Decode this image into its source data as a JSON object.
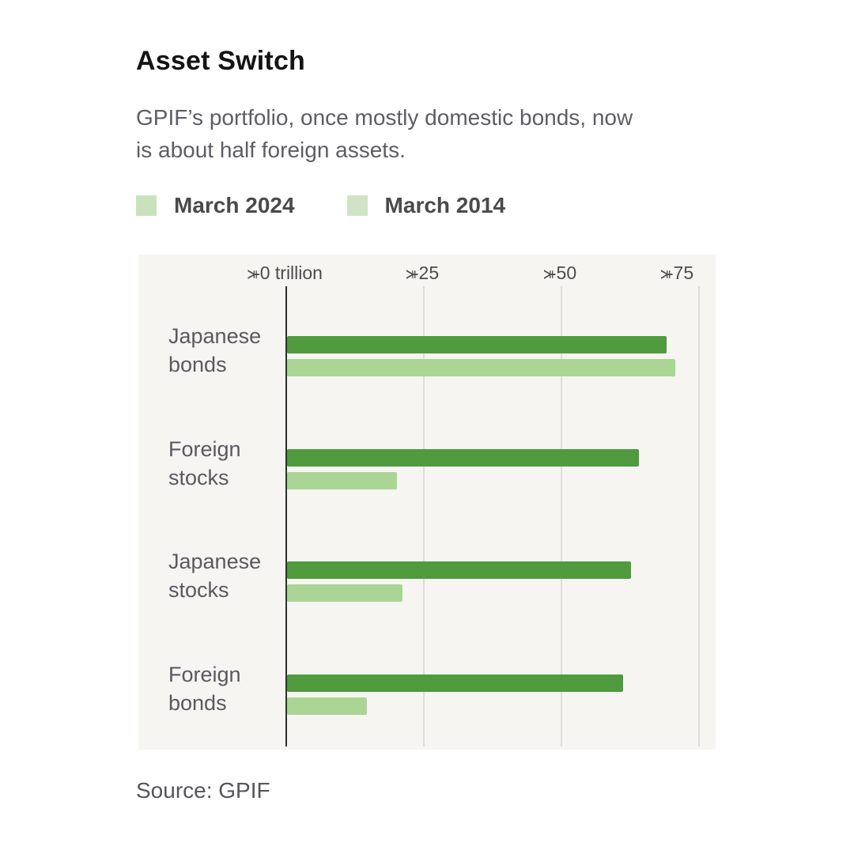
{
  "header": {
    "title": "Asset Switch",
    "subtitle_line1": "GPIF’s portfolio, once mostly domestic bonds, now",
    "subtitle_line2": "is about half foreign assets."
  },
  "legend": [
    {
      "label": "March 2024",
      "color": "#c9e2bc"
    },
    {
      "label": "March 2014",
      "color": "#cfe4c6"
    }
  ],
  "source": "Source: GPIF",
  "chart_data": {
    "type": "bar",
    "orientation": "horizontal",
    "title": "Asset Switch",
    "unit": "yen trillion",
    "categories": [
      "Japanese bonds",
      "Foreign stocks",
      "Japanese stocks",
      "Foreign bonds"
    ],
    "series": [
      {
        "name": "March 2024",
        "color": "#4f9b3e",
        "values": [
          69,
          64,
          62.5,
          61
        ]
      },
      {
        "name": "March 2014",
        "color": "#abd595",
        "values": [
          70.5,
          20,
          21,
          14.5
        ]
      }
    ],
    "x_axis": {
      "ticks": [
        {
          "symbol": "¥",
          "label": "0 trillion",
          "value": 0
        },
        {
          "symbol": "¥",
          "label": "25",
          "value": 25
        },
        {
          "symbol": "¥",
          "label": "50",
          "value": 50
        },
        {
          "symbol": "¥",
          "label": "75",
          "value": 75
        }
      ],
      "min": 0,
      "max": 78
    },
    "grid": true,
    "legend_position": "top"
  }
}
